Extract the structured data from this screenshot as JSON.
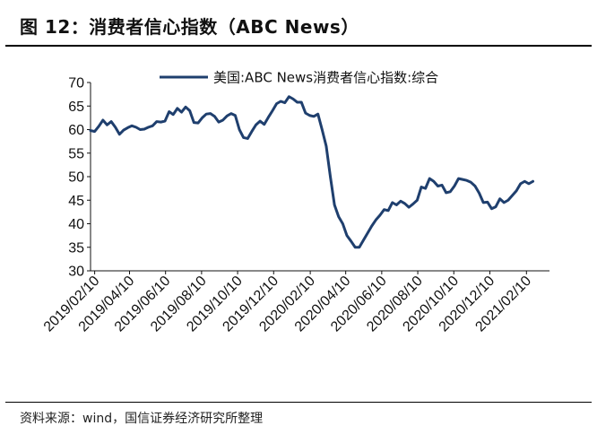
{
  "figure": {
    "title": "图 12：消费者信心指数（ABC News）",
    "source": "资料来源：wind，国信证券经济研究所整理"
  },
  "colors": {
    "series": "#1f3f6e",
    "axis": "#111111",
    "rule": "#000000"
  },
  "chart_data": {
    "type": "line",
    "title": "",
    "xlabel": "",
    "ylabel": "",
    "ylim": [
      30,
      70
    ],
    "yticks": [
      30,
      35,
      40,
      45,
      50,
      55,
      60,
      65,
      70
    ],
    "xlim": [
      "2019-02-03",
      "2021-03-21"
    ],
    "xticks": [
      "2019/02/10",
      "2019/04/10",
      "2019/06/10",
      "2019/08/10",
      "2019/10/10",
      "2019/12/10",
      "2020/02/10",
      "2020/04/10",
      "2020/06/10",
      "2020/08/10",
      "2020/10/10",
      "2020/12/10",
      "2021/02/10"
    ],
    "grid": false,
    "legend": "top",
    "series": [
      {
        "name": "美国:ABC News消费者信心指数:综合",
        "color": "#1f3f6e",
        "points": [
          [
            "2019-02-03",
            59.8
          ],
          [
            "2019-02-10",
            59.6
          ],
          [
            "2019-02-17",
            60.7
          ],
          [
            "2019-02-24",
            62.0
          ],
          [
            "2019-03-03",
            61.0
          ],
          [
            "2019-03-10",
            61.7
          ],
          [
            "2019-03-17",
            60.5
          ],
          [
            "2019-03-24",
            59.0
          ],
          [
            "2019-03-31",
            59.9
          ],
          [
            "2019-04-07",
            60.4
          ],
          [
            "2019-04-14",
            60.8
          ],
          [
            "2019-04-21",
            60.5
          ],
          [
            "2019-04-28",
            60.0
          ],
          [
            "2019-05-05",
            60.1
          ],
          [
            "2019-05-12",
            60.5
          ],
          [
            "2019-05-19",
            60.8
          ],
          [
            "2019-05-26",
            61.7
          ],
          [
            "2019-06-02",
            61.6
          ],
          [
            "2019-06-09",
            61.8
          ],
          [
            "2019-06-16",
            63.8
          ],
          [
            "2019-06-23",
            63.2
          ],
          [
            "2019-06-30",
            64.5
          ],
          [
            "2019-07-07",
            63.7
          ],
          [
            "2019-07-14",
            64.8
          ],
          [
            "2019-07-21",
            64.0
          ],
          [
            "2019-07-28",
            61.5
          ],
          [
            "2019-08-04",
            61.4
          ],
          [
            "2019-08-11",
            62.5
          ],
          [
            "2019-08-18",
            63.3
          ],
          [
            "2019-08-25",
            63.4
          ],
          [
            "2019-09-01",
            62.8
          ],
          [
            "2019-09-08",
            61.6
          ],
          [
            "2019-09-15",
            62.0
          ],
          [
            "2019-09-22",
            62.9
          ],
          [
            "2019-09-29",
            63.4
          ],
          [
            "2019-10-06",
            63.0
          ],
          [
            "2019-10-13",
            60.0
          ],
          [
            "2019-10-20",
            58.3
          ],
          [
            "2019-10-27",
            58.1
          ],
          [
            "2019-11-03",
            59.6
          ],
          [
            "2019-11-10",
            61.0
          ],
          [
            "2019-11-17",
            61.8
          ],
          [
            "2019-11-24",
            61.1
          ],
          [
            "2019-12-01",
            62.6
          ],
          [
            "2019-12-08",
            64.0
          ],
          [
            "2019-12-15",
            65.5
          ],
          [
            "2019-12-22",
            66.0
          ],
          [
            "2019-12-29",
            65.7
          ],
          [
            "2020-01-05",
            67.0
          ],
          [
            "2020-01-12",
            66.5
          ],
          [
            "2020-01-19",
            65.8
          ],
          [
            "2020-01-26",
            65.8
          ],
          [
            "2020-02-02",
            63.5
          ],
          [
            "2020-02-09",
            63.0
          ],
          [
            "2020-02-16",
            62.8
          ],
          [
            "2020-02-23",
            63.3
          ],
          [
            "2020-03-01",
            60.0
          ],
          [
            "2020-03-08",
            56.5
          ],
          [
            "2020-03-15",
            50.0
          ],
          [
            "2020-03-22",
            44.0
          ],
          [
            "2020-03-29",
            41.5
          ],
          [
            "2020-04-05",
            40.0
          ],
          [
            "2020-04-12",
            37.5
          ],
          [
            "2020-04-19",
            36.3
          ],
          [
            "2020-04-26",
            35.0
          ],
          [
            "2020-05-03",
            35.0
          ],
          [
            "2020-05-10",
            36.5
          ],
          [
            "2020-05-17",
            38.0
          ],
          [
            "2020-05-24",
            39.5
          ],
          [
            "2020-05-31",
            40.8
          ],
          [
            "2020-06-07",
            41.8
          ],
          [
            "2020-06-14",
            43.0
          ],
          [
            "2020-06-21",
            42.8
          ],
          [
            "2020-06-28",
            44.5
          ],
          [
            "2020-07-05",
            44.0
          ],
          [
            "2020-07-12",
            44.8
          ],
          [
            "2020-07-19",
            44.3
          ],
          [
            "2020-07-26",
            43.5
          ],
          [
            "2020-08-02",
            44.2
          ],
          [
            "2020-08-09",
            45.0
          ],
          [
            "2020-08-16",
            47.8
          ],
          [
            "2020-08-23",
            47.5
          ],
          [
            "2020-08-30",
            49.6
          ],
          [
            "2020-09-06",
            49.0
          ],
          [
            "2020-09-13",
            48.0
          ],
          [
            "2020-09-20",
            48.2
          ],
          [
            "2020-09-27",
            46.6
          ],
          [
            "2020-10-04",
            46.8
          ],
          [
            "2020-10-11",
            48.0
          ],
          [
            "2020-10-18",
            49.6
          ],
          [
            "2020-10-25",
            49.4
          ],
          [
            "2020-11-01",
            49.2
          ],
          [
            "2020-11-08",
            48.8
          ],
          [
            "2020-11-15",
            48.0
          ],
          [
            "2020-11-22",
            46.5
          ],
          [
            "2020-11-29",
            44.5
          ],
          [
            "2020-12-06",
            44.6
          ],
          [
            "2020-12-13",
            43.2
          ],
          [
            "2020-12-20",
            43.6
          ],
          [
            "2020-12-27",
            45.3
          ],
          [
            "2021-01-03",
            44.5
          ],
          [
            "2021-01-10",
            45.0
          ],
          [
            "2021-01-17",
            46.0
          ],
          [
            "2021-01-24",
            47.0
          ],
          [
            "2021-01-31",
            48.5
          ],
          [
            "2021-02-07",
            49.0
          ],
          [
            "2021-02-14",
            48.5
          ],
          [
            "2021-02-21",
            49.0
          ]
        ]
      }
    ]
  }
}
